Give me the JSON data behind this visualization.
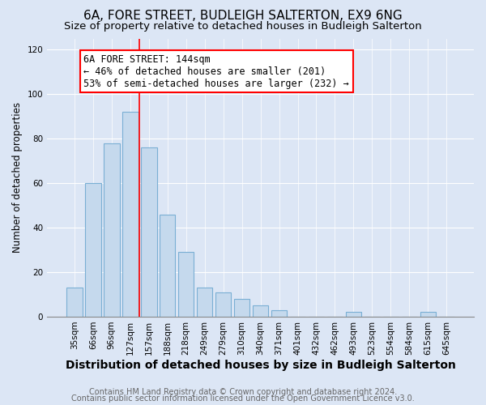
{
  "title1": "6A, FORE STREET, BUDLEIGH SALTERTON, EX9 6NG",
  "title2": "Size of property relative to detached houses in Budleigh Salterton",
  "xlabel": "Distribution of detached houses by size in Budleigh Salterton",
  "ylabel": "Number of detached properties",
  "bar_labels": [
    "35sqm",
    "66sqm",
    "96sqm",
    "127sqm",
    "157sqm",
    "188sqm",
    "218sqm",
    "249sqm",
    "279sqm",
    "310sqm",
    "340sqm",
    "371sqm",
    "401sqm",
    "432sqm",
    "462sqm",
    "493sqm",
    "523sqm",
    "554sqm",
    "584sqm",
    "615sqm",
    "645sqm"
  ],
  "bar_values": [
    13,
    60,
    78,
    92,
    76,
    46,
    29,
    13,
    11,
    8,
    5,
    3,
    0,
    0,
    0,
    2,
    0,
    0,
    0,
    2,
    0
  ],
  "bar_color": "#c5d9ed",
  "bar_edge_color": "#7aafd4",
  "annotation_box_text": "6A FORE STREET: 144sqm\n← 46% of detached houses are smaller (201)\n53% of semi-detached houses are larger (232) →",
  "red_line_x": 3.5,
  "ylim": [
    0,
    125
  ],
  "yticks": [
    0,
    20,
    40,
    60,
    80,
    100,
    120
  ],
  "footer1": "Contains HM Land Registry data © Crown copyright and database right 2024.",
  "footer2": "Contains public sector information licensed under the Open Government Licence v3.0.",
  "bg_color": "#dce6f5",
  "plot_bg_color": "#dce6f5",
  "title1_fontsize": 11,
  "title2_fontsize": 9.5,
  "xlabel_fontsize": 10,
  "ylabel_fontsize": 8.5,
  "annotation_fontsize": 8.5,
  "footer_fontsize": 7,
  "tick_fontsize": 7.5
}
